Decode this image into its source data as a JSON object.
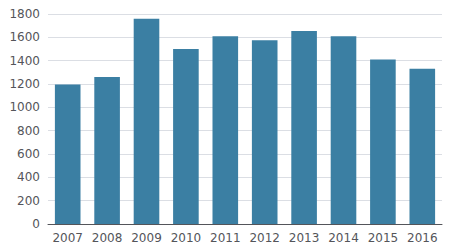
{
  "chart_data": {
    "type": "bar",
    "categories": [
      "2007",
      "2008",
      "2009",
      "2010",
      "2011",
      "2012",
      "2013",
      "2014",
      "2015",
      "2016"
    ],
    "values": [
      1195,
      1260,
      1760,
      1500,
      1610,
      1575,
      1655,
      1610,
      1410,
      1330
    ],
    "color": "#3b7fa3",
    "ylim": [
      0,
      1800
    ],
    "yticks": [
      0,
      200,
      400,
      600,
      800,
      1000,
      1200,
      1400,
      1600,
      1800
    ],
    "grid": true
  }
}
